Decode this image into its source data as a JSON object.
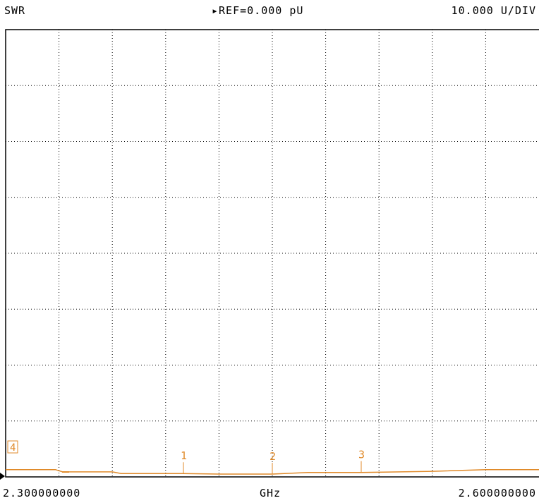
{
  "header": {
    "parameter": "SWR",
    "reference": "▸REF=0.000 pU",
    "scale": "10.000 U/DIV"
  },
  "footer": {
    "start": "2.300000000",
    "unit": "GHz",
    "stop": "2.600000000"
  },
  "colors": {
    "trace": "#e08a2a",
    "grid": "#000000",
    "frame": "#000000"
  },
  "chart_data": {
    "type": "line",
    "x_unit": "GHz",
    "xlim": [
      2.3,
      2.6
    ],
    "ylim": [
      0,
      80
    ],
    "y_divisions": 8,
    "x_divisions": 10,
    "grid": "dotted",
    "series": [
      {
        "x": [
          2.3,
          2.328,
          2.332,
          2.36,
          2.365,
          2.4,
          2.42,
          2.45,
          2.47,
          2.5,
          2.54,
          2.57,
          2.6
        ],
        "y": [
          1.3,
          1.3,
          0.9,
          0.9,
          0.6,
          0.6,
          0.5,
          0.5,
          0.8,
          0.8,
          1.0,
          1.3,
          1.3
        ]
      }
    ],
    "markers": [
      {
        "label": "1",
        "x": 2.4
      },
      {
        "label": "2",
        "x": 2.45
      },
      {
        "label": "3",
        "x": 2.5
      }
    ],
    "reference_marker": {
      "label": "4"
    }
  }
}
